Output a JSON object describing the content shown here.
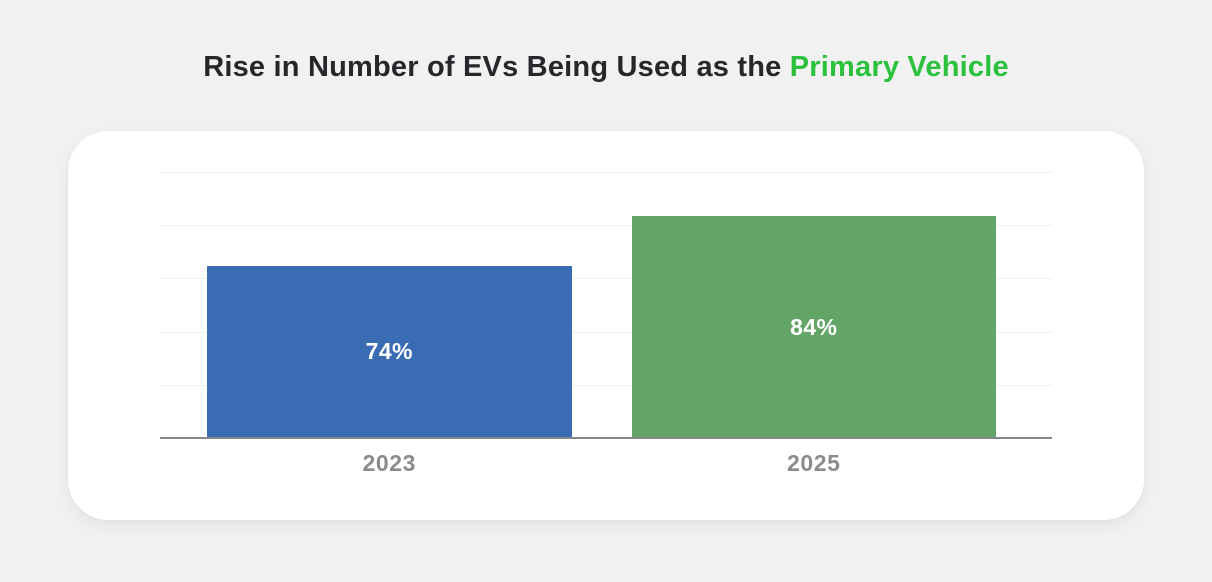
{
  "title": {
    "main": "Rise in Number of EVs Being Used as the",
    "accent": "Primary Vehicle",
    "accent_color": "#2cc13c",
    "text_color": "#25272a"
  },
  "chart_data": {
    "type": "bar",
    "title": "Rise in Number of EVs Being Used as the Primary Vehicle",
    "categories": [
      "2023",
      "2025"
    ],
    "values": [
      74,
      84
    ],
    "value_labels": [
      "74%",
      "84%"
    ],
    "bar_colors": [
      "#3a6cb4",
      "#62a566"
    ],
    "bar_label_color": "#ffffff",
    "category_label_color": "#8b8b8b",
    "xlabel": "",
    "ylabel": "",
    "ylim": [
      39,
      93
    ],
    "grid": true,
    "gridline_count": 5,
    "legend_position": "none"
  }
}
